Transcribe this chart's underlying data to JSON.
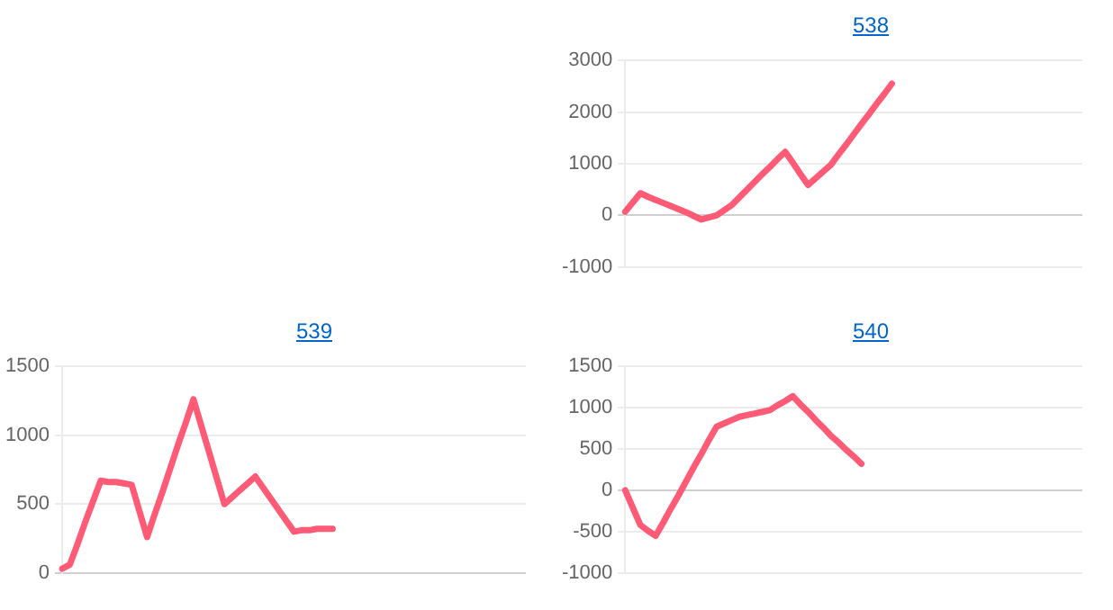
{
  "chart_data": [
    {
      "type": "line",
      "title": "538",
      "categories": [
        null,
        null,
        null,
        null,
        null,
        null,
        null,
        null,
        null,
        null,
        null,
        null,
        null,
        null,
        null,
        null,
        null,
        null,
        null,
        null,
        null,
        null,
        null,
        null,
        null,
        null,
        null,
        null,
        null,
        null,
        null,
        null,
        null,
        null,
        null,
        null,
        null,
        null,
        null,
        null,
        null,
        null,
        null,
        null,
        null,
        null,
        null,
        null,
        null,
        null,
        null,
        null,
        null,
        null,
        null,
        null,
        null,
        null,
        null,
        null,
        null
      ],
      "series": [
        {
          "color": "#ff5a76",
          "values": [
            70,
            250,
            430,
            360,
            300,
            240,
            180,
            120,
            60,
            -10,
            -80,
            -40,
            0,
            100,
            200,
            350,
            500,
            650,
            800,
            940,
            1090,
            1230,
            1020,
            800,
            590,
            720,
            850,
            980,
            1180,
            1370,
            1570,
            1770,
            1960,
            2160,
            2350,
            2550,
            null,
            null,
            null,
            null,
            null,
            null,
            null,
            null,
            null,
            null,
            null,
            null,
            null,
            null,
            null,
            null,
            null,
            null,
            null,
            null,
            null,
            null,
            null,
            null,
            null
          ]
        }
      ],
      "ylim": [
        -1000,
        3000
      ],
      "yticks": [
        -1000,
        0,
        1000,
        2000,
        3000
      ],
      "grid": "y",
      "tick_labels": "y",
      "legend": false,
      "marker": "none"
    },
    {
      "type": "line",
      "title": "539",
      "categories": [
        null,
        null,
        null,
        null,
        null,
        null,
        null,
        null,
        null,
        null,
        null,
        null,
        null,
        null,
        null,
        null,
        null,
        null,
        null,
        null,
        null,
        null,
        null,
        null,
        null,
        null,
        null,
        null,
        null,
        null,
        null,
        null,
        null,
        null,
        null,
        null,
        null,
        null,
        null,
        null,
        null,
        null,
        null,
        null,
        null,
        null,
        null,
        null,
        null,
        null,
        null,
        null,
        null,
        null,
        null,
        null,
        null,
        null,
        null,
        null,
        null
      ],
      "series": [
        {
          "color": "#ff5a76",
          "values": [
            30,
            60,
            210,
            370,
            520,
            670,
            660,
            660,
            650,
            640,
            450,
            260,
            430,
            590,
            760,
            930,
            1090,
            1260,
            1070,
            880,
            690,
            500,
            550,
            600,
            650,
            700,
            620,
            540,
            460,
            380,
            300,
            310,
            310,
            320,
            320,
            320,
            null,
            null,
            null,
            null,
            null,
            null,
            null,
            null,
            null,
            null,
            null,
            null,
            null,
            null,
            null,
            null,
            null,
            null,
            null,
            null,
            null,
            null,
            null,
            null,
            null
          ]
        }
      ],
      "ylim": [
        0,
        1500
      ],
      "yticks": [
        0,
        500,
        1000,
        1500
      ],
      "grid": "y",
      "tick_labels": "y",
      "legend": false,
      "marker": "none"
    },
    {
      "type": "line",
      "title": "540",
      "categories": [
        null,
        null,
        null,
        null,
        null,
        null,
        null,
        null,
        null,
        null,
        null,
        null,
        null,
        null,
        null,
        null,
        null,
        null,
        null,
        null,
        null,
        null,
        null,
        null,
        null,
        null,
        null,
        null,
        null,
        null,
        null,
        null,
        null,
        null,
        null,
        null,
        null,
        null,
        null,
        null,
        null,
        null,
        null,
        null,
        null,
        null,
        null,
        null,
        null,
        null,
        null,
        null,
        null,
        null,
        null,
        null,
        null,
        null,
        null,
        null,
        null
      ],
      "series": [
        {
          "color": "#ff5a76",
          "values": [
            0,
            -210,
            -420,
            -490,
            -550,
            -390,
            -220,
            -60,
            110,
            280,
            440,
            610,
            770,
            810,
            850,
            890,
            910,
            930,
            950,
            970,
            1030,
            1080,
            1140,
            1040,
            950,
            850,
            760,
            660,
            580,
            490,
            410,
            320,
            null,
            null,
            null,
            null,
            null,
            null,
            null,
            null,
            null,
            null,
            null,
            null,
            null,
            null,
            null,
            null,
            null,
            null,
            null,
            null,
            null,
            null,
            null,
            null,
            null,
            null,
            null,
            null,
            null
          ]
        }
      ],
      "ylim": [
        -1000,
        1500
      ],
      "yticks": [
        -1000,
        -500,
        0,
        500,
        1000,
        1500
      ],
      "grid": "y",
      "tick_labels": "y",
      "legend": false,
      "marker": "none"
    }
  ]
}
